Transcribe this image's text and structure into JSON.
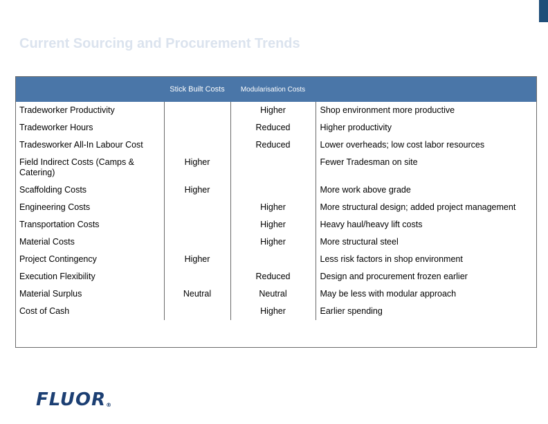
{
  "slide": {
    "title": "Current Sourcing and Procurement Trends",
    "logo_text": "FLUOR",
    "logo_mark": "®",
    "colors": {
      "title": "#dbe3ee",
      "header_bg": "#4a76a8",
      "logo": "#1c3f73",
      "corner_bar": "#1f4e79"
    }
  },
  "table": {
    "headers": {
      "factor": "",
      "stick_built": "Stick Built Costs",
      "modularisation": "Modularisation Costs",
      "notes": ""
    },
    "rows": [
      {
        "factor": "Tradeworker Productivity",
        "stick_built": "",
        "modularisation": "Higher",
        "note": "Shop environment more productive"
      },
      {
        "factor": "Tradeworker Hours",
        "stick_built": "",
        "modularisation": "Reduced",
        "note": "Higher productivity"
      },
      {
        "factor": "Tradesworker All-In Labour Cost",
        "stick_built": "",
        "modularisation": "Reduced",
        "note": "Lower overheads; low cost labor resources"
      },
      {
        "factor": "Field Indirect Costs (Camps & Catering)",
        "stick_built": "Higher",
        "modularisation": "",
        "note": "Fewer Tradesman on site"
      },
      {
        "factor": "Scaffolding Costs",
        "stick_built": "Higher",
        "modularisation": "",
        "note": "More work above grade"
      },
      {
        "factor": "Engineering Costs",
        "stick_built": "",
        "modularisation": "Higher",
        "note": "More structural design; added project management"
      },
      {
        "factor": "Transportation Costs",
        "stick_built": "",
        "modularisation": "Higher",
        "note": "Heavy haul/heavy lift costs"
      },
      {
        "factor": "Material Costs",
        "stick_built": "",
        "modularisation": "Higher",
        "note": "More structural steel"
      },
      {
        "factor": "Project Contingency",
        "stick_built": "Higher",
        "modularisation": "",
        "note": "Less risk factors in shop environment"
      },
      {
        "factor": "Execution Flexibility",
        "stick_built": "",
        "modularisation": "Reduced",
        "note": "Design and procurement frozen earlier"
      },
      {
        "factor": "Material Surplus",
        "stick_built": "Neutral",
        "modularisation": "Neutral",
        "note": "May be less with modular approach"
      },
      {
        "factor": "Cost of Cash",
        "stick_built": "",
        "modularisation": "Higher",
        "note": "Earlier spending"
      }
    ]
  }
}
